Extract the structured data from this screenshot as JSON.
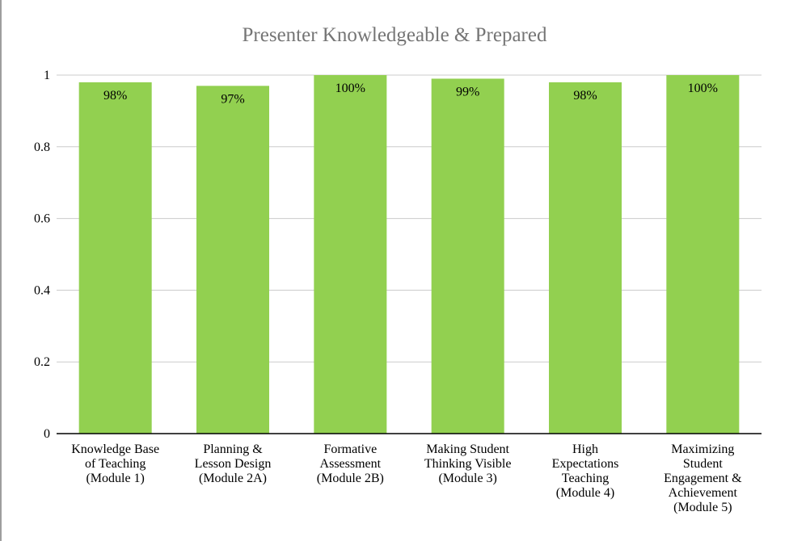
{
  "chart_data": {
    "type": "bar",
    "title": "Presenter Knowledgeable & Prepared",
    "categories": [
      "Knowledge Base of Teaching (Module 1)",
      "Planning & Lesson Design (Module 2A)",
      "Formative Assessment (Module 2B)",
      "Making Student Thinking Visible (Module 3)",
      "High Expectations Teaching (Module 4)",
      "Maximizing Student Engagement & Achievement (Module 5)"
    ],
    "category_lines": [
      [
        "Knowledge Base",
        "of Teaching",
        "(Module 1)"
      ],
      [
        "Planning &",
        "Lesson Design",
        "(Module 2A)"
      ],
      [
        "Formative",
        "Assessment",
        "(Module 2B)"
      ],
      [
        "Making Student",
        "Thinking Visible",
        "(Module 3)"
      ],
      [
        "High",
        "Expectations",
        "Teaching",
        "(Module 4)"
      ],
      [
        "Maximizing",
        "Student",
        "Engagement &",
        "Achievement",
        "(Module 5)"
      ]
    ],
    "values": [
      0.98,
      0.97,
      1.0,
      0.99,
      0.98,
      1.0
    ],
    "data_labels": [
      "98%",
      "97%",
      "100%",
      "99%",
      "98%",
      "100%"
    ],
    "xlabel": "",
    "ylabel": "",
    "ylim": [
      0,
      1
    ],
    "yticks": [
      "0",
      "0.2",
      "0.4",
      "0.6",
      "0.8",
      "1"
    ],
    "ytick_values": [
      0,
      0.2,
      0.4,
      0.6,
      0.8,
      1
    ],
    "grid": true,
    "legend": "none",
    "colors": {
      "bar": "#92d050",
      "grid": "#cccccc",
      "axis": "#000000",
      "title": "#757575"
    }
  }
}
